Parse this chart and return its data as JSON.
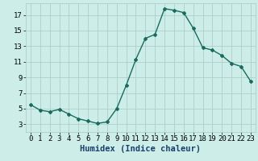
{
  "x": [
    0,
    1,
    2,
    3,
    4,
    5,
    6,
    7,
    8,
    9,
    10,
    11,
    12,
    13,
    14,
    15,
    16,
    17,
    18,
    19,
    20,
    21,
    22,
    23
  ],
  "y": [
    5.5,
    4.8,
    4.6,
    4.9,
    4.3,
    3.7,
    3.4,
    3.1,
    3.3,
    5.0,
    8.0,
    11.3,
    14.0,
    14.5,
    17.8,
    17.6,
    17.3,
    15.3,
    12.8,
    12.5,
    11.8,
    10.8,
    10.4,
    8.5
  ],
  "xlabel": "Humidex (Indice chaleur)",
  "xlim": [
    -0.5,
    23.5
  ],
  "ylim": [
    2.0,
    18.5
  ],
  "yticks": [
    3,
    5,
    7,
    9,
    11,
    13,
    15,
    17
  ],
  "xticks": [
    0,
    1,
    2,
    3,
    4,
    5,
    6,
    7,
    8,
    9,
    10,
    11,
    12,
    13,
    14,
    15,
    16,
    17,
    18,
    19,
    20,
    21,
    22,
    23
  ],
  "line_color": "#1a6b5e",
  "marker": "D",
  "marker_size": 2.0,
  "bg_color": "#cdeee8",
  "grid_color": "#b0cec8",
  "xlabel_color": "#1a3f6b",
  "xlabel_fontsize": 7.5,
  "tick_fontsize": 6.5,
  "line_width": 1.0
}
